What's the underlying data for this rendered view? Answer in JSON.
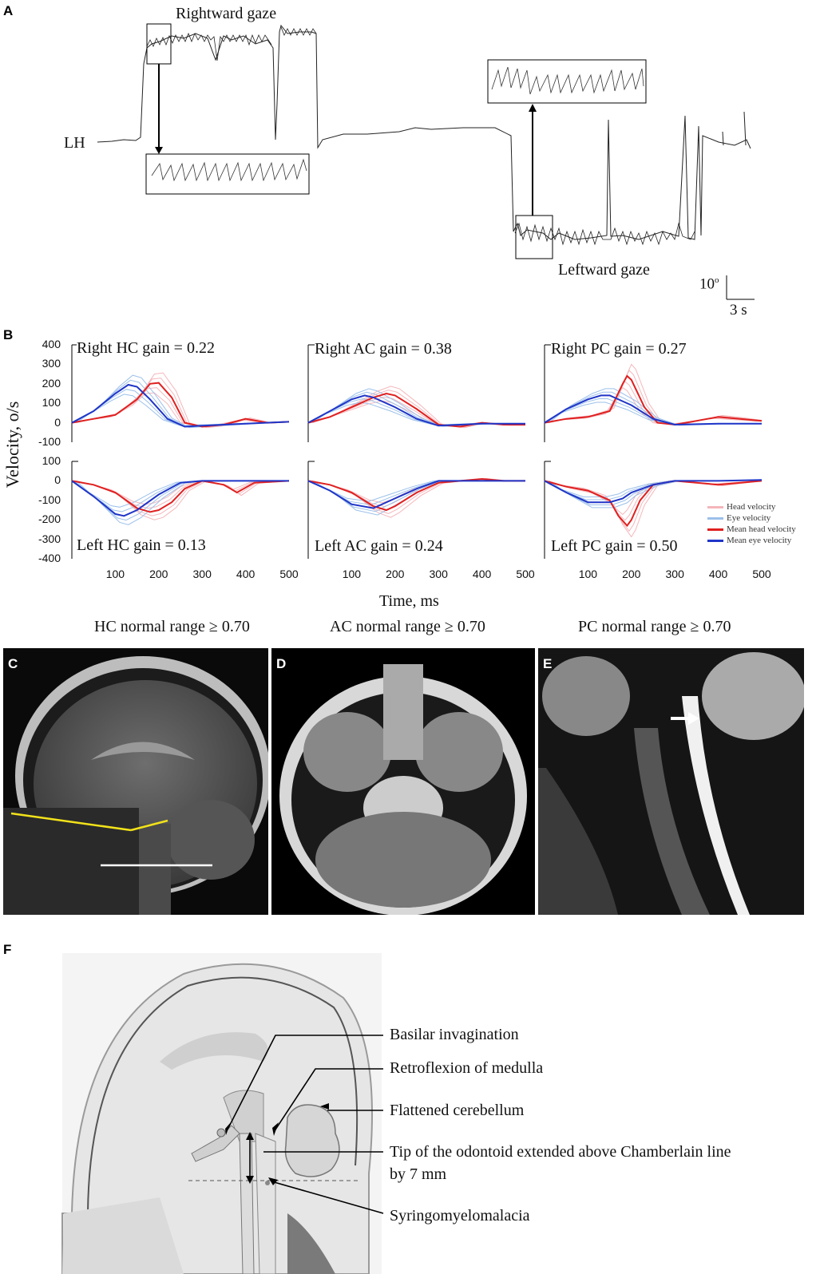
{
  "panel_labels": {
    "a": "A",
    "b": "B",
    "c": "C",
    "d": "D",
    "e": "E",
    "f": "F"
  },
  "panel_a": {
    "trace_label": "LH",
    "rightward_label": "Rightward gaze",
    "leftward_label": "Leftward gaze",
    "scale_deg": "10",
    "scale_deg_sup": "o",
    "scale_time": "3 s"
  },
  "panel_b": {
    "ylabel": "Velocity, o/s",
    "xlabel": "Time, ms",
    "top_yticks": [
      "400",
      "300",
      "200",
      "100",
      "0",
      "-100"
    ],
    "bottom_yticks": [
      "100",
      "0",
      "-100",
      "-200",
      "-300",
      "-400"
    ],
    "xticks": [
      "100",
      "200",
      "300",
      "400",
      "500"
    ],
    "gains_top": [
      "Right HC gain = 0.22",
      "Right AC gain = 0.38",
      "Right PC gain = 0.27"
    ],
    "gains_bottom": [
      "Left HC gain = 0.13",
      "Left AC gain = 0.24",
      "Left PC gain = 0.50"
    ],
    "normal_ranges": [
      "HC normal range ≥ 0.70",
      "AC normal range ≥ 0.70",
      "PC normal range ≥ 0.70"
    ],
    "legend": [
      "Head velocity",
      "Eye velocity",
      "Mean head velocity",
      "Mean eye velocity"
    ],
    "colors": {
      "head": "#f4b6bb",
      "eye": "#9cc0ea",
      "mean_head": "#e02020",
      "mean_eye": "#1f35c8"
    }
  },
  "chart_data": [
    {
      "type": "line",
      "title": "Right HC gain = 0.22",
      "xlabel": "Time, ms",
      "ylabel": "Velocity, o/s",
      "xlim": [
        0,
        500
      ],
      "ylim": [
        -100,
        400
      ],
      "series": [
        {
          "name": "Mean head velocity",
          "x": [
            0,
            50,
            100,
            150,
            180,
            200,
            230,
            260,
            300,
            350,
            400,
            450,
            500
          ],
          "values": [
            0,
            20,
            40,
            120,
            200,
            205,
            130,
            0,
            -20,
            -10,
            20,
            0,
            5
          ]
        },
        {
          "name": "Mean eye velocity",
          "x": [
            0,
            50,
            100,
            130,
            150,
            180,
            220,
            260,
            300,
            400,
            500
          ],
          "values": [
            0,
            60,
            150,
            195,
            185,
            120,
            20,
            -20,
            -15,
            -5,
            5
          ]
        }
      ]
    },
    {
      "type": "line",
      "title": "Right AC gain = 0.38",
      "xlabel": "Time, ms",
      "ylabel": "Velocity, o/s",
      "xlim": [
        0,
        500
      ],
      "ylim": [
        -100,
        400
      ],
      "series": [
        {
          "name": "Mean head velocity",
          "x": [
            0,
            50,
            100,
            150,
            180,
            200,
            250,
            300,
            350,
            400,
            450,
            500
          ],
          "values": [
            0,
            30,
            80,
            130,
            150,
            140,
            70,
            -10,
            -20,
            0,
            -10,
            -10
          ]
        },
        {
          "name": "Mean eye velocity",
          "x": [
            0,
            50,
            100,
            130,
            150,
            200,
            250,
            300,
            400,
            500
          ],
          "values": [
            0,
            60,
            120,
            140,
            130,
            80,
            20,
            -15,
            -5,
            -5
          ]
        }
      ]
    },
    {
      "type": "line",
      "title": "Right PC gain = 0.27",
      "xlabel": "Time, ms",
      "ylabel": "Velocity, o/s",
      "xlim": [
        0,
        500
      ],
      "ylim": [
        -100,
        400
      ],
      "series": [
        {
          "name": "Mean head velocity",
          "x": [
            0,
            50,
            100,
            150,
            180,
            190,
            200,
            230,
            260,
            300,
            350,
            400,
            450,
            500
          ],
          "values": [
            0,
            20,
            30,
            60,
            200,
            240,
            220,
            80,
            0,
            -10,
            10,
            30,
            20,
            10
          ]
        },
        {
          "name": "Mean eye velocity",
          "x": [
            0,
            50,
            100,
            130,
            150,
            200,
            250,
            300,
            400,
            500
          ],
          "values": [
            0,
            70,
            120,
            140,
            140,
            90,
            20,
            -10,
            -5,
            -5
          ]
        }
      ]
    },
    {
      "type": "line",
      "title": "Left HC gain = 0.13",
      "xlabel": "Time, ms",
      "ylabel": "Velocity, o/s",
      "xlim": [
        0,
        500
      ],
      "ylim": [
        -400,
        100
      ],
      "series": [
        {
          "name": "Mean head velocity",
          "x": [
            0,
            50,
            100,
            150,
            180,
            200,
            230,
            260,
            300,
            350,
            380,
            420,
            500
          ],
          "values": [
            0,
            -20,
            -60,
            -140,
            -160,
            -150,
            -110,
            -40,
            0,
            -20,
            -60,
            -10,
            0
          ]
        },
        {
          "name": "Mean eye velocity",
          "x": [
            0,
            50,
            100,
            120,
            150,
            200,
            250,
            300,
            400,
            500
          ],
          "values": [
            0,
            -80,
            -170,
            -180,
            -150,
            -70,
            -10,
            0,
            0,
            0
          ]
        }
      ]
    },
    {
      "type": "line",
      "title": "Left AC gain = 0.24",
      "xlabel": "Time, ms",
      "ylabel": "Velocity, o/s",
      "xlim": [
        0,
        500
      ],
      "ylim": [
        -400,
        100
      ],
      "series": [
        {
          "name": "Mean head velocity",
          "x": [
            0,
            50,
            100,
            150,
            180,
            200,
            250,
            300,
            350,
            400,
            450,
            500
          ],
          "values": [
            0,
            -20,
            -60,
            -130,
            -150,
            -130,
            -60,
            -10,
            0,
            10,
            0,
            0
          ]
        },
        {
          "name": "Mean eye velocity",
          "x": [
            0,
            50,
            100,
            150,
            200,
            250,
            300,
            400,
            500
          ],
          "values": [
            0,
            -50,
            -120,
            -140,
            -90,
            -40,
            0,
            0,
            0
          ]
        }
      ]
    },
    {
      "type": "line",
      "title": "Left PC gain = 0.50",
      "xlabel": "Time, ms",
      "ylabel": "Velocity, o/s",
      "xlim": [
        0,
        500
      ],
      "ylim": [
        -400,
        100
      ],
      "series": [
        {
          "name": "Mean head velocity",
          "x": [
            0,
            50,
            100,
            150,
            170,
            190,
            200,
            220,
            250,
            300,
            350,
            400,
            500
          ],
          "values": [
            0,
            -30,
            -50,
            -100,
            -180,
            -230,
            -200,
            -100,
            -20,
            0,
            -10,
            -20,
            0
          ]
        },
        {
          "name": "Mean eye velocity",
          "x": [
            0,
            50,
            100,
            150,
            180,
            200,
            250,
            300,
            400,
            500
          ],
          "values": [
            0,
            -60,
            -110,
            -110,
            -90,
            -60,
            -20,
            0,
            0,
            5
          ]
        }
      ]
    }
  ],
  "panel_f": {
    "annotations": [
      "Basilar invagination",
      "Retroflexion of medulla",
      "Flattened cerebellum",
      "Tip of the odontoid extended above Chamberlain line",
      "by 7 mm",
      "Syringomyelomalacia"
    ]
  }
}
